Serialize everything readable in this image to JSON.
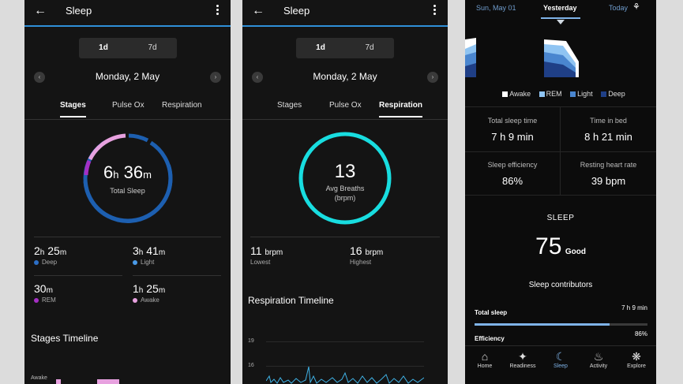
{
  "screen1": {
    "title": "Sleep",
    "toggle": [
      "1d",
      "7d"
    ],
    "date": "Monday, 2 May",
    "tabs": [
      "Stages",
      "Pulse Ox",
      "Respiration"
    ],
    "total_h": "6",
    "h_unit": "h",
    "total_m": "36",
    "m_unit": "m",
    "total_label": "Total Sleep",
    "stats": [
      {
        "h": "2",
        "m": "25",
        "label": "Deep",
        "color": "#2c6fc7"
      },
      {
        "h": "3",
        "m": "41",
        "label": "Light",
        "color": "#4a9be8"
      },
      {
        "m": "30",
        "label": "REM",
        "color": "#a52fc4"
      },
      {
        "h": "1",
        "m": "25",
        "label": "Awake",
        "color": "#e7a1df"
      }
    ],
    "timeline_title": "Stages Timeline",
    "timeline_axis_label": "Awake"
  },
  "screen2": {
    "title": "Sleep",
    "toggle": [
      "1d",
      "7d"
    ],
    "date": "Monday, 2 May",
    "tabs": [
      "Stages",
      "Pulse Ox",
      "Respiration"
    ],
    "avg_value": "13",
    "avg_label": "Avg Breaths",
    "avg_unit": "(brpm)",
    "lowest_value": "11",
    "lowest_unit": "brpm",
    "lowest_label": "Lowest",
    "highest_value": "16",
    "highest_unit": "brpm",
    "highest_label": "Highest",
    "timeline_title": "Respiration Timeline",
    "y_ticks": [
      "19",
      "16"
    ]
  },
  "screen3": {
    "dates": [
      "Sun, May 01",
      "Yesterday",
      "Today"
    ],
    "legend": [
      {
        "label": "Awake",
        "color": "#ffffff"
      },
      {
        "label": "REM",
        "color": "#8fc4f2"
      },
      {
        "label": "Light",
        "color": "#4a86cf"
      },
      {
        "label": "Deep",
        "color": "#1f3f86"
      }
    ],
    "metrics": [
      {
        "label": "Total sleep time",
        "value": "7 h 9 min"
      },
      {
        "label": "Time in bed",
        "value": "8 h 21 min"
      },
      {
        "label": "Sleep efficiency",
        "value": "86%"
      },
      {
        "label": "Resting heart rate",
        "value": "39 bpm"
      }
    ],
    "score_title": "SLEEP",
    "score": "75",
    "score_label": "Good",
    "contributors_title": "Sleep contributors",
    "contributors": [
      {
        "label": "Total sleep",
        "value": "7 h 9 min",
        "fill": 0.78
      },
      {
        "label": "Efficiency",
        "value": "86%",
        "fill": 0.86
      }
    ],
    "nav": [
      "Home",
      "Readiness",
      "Sleep",
      "Activity",
      "Explore"
    ],
    "active_nav": "Sleep"
  }
}
